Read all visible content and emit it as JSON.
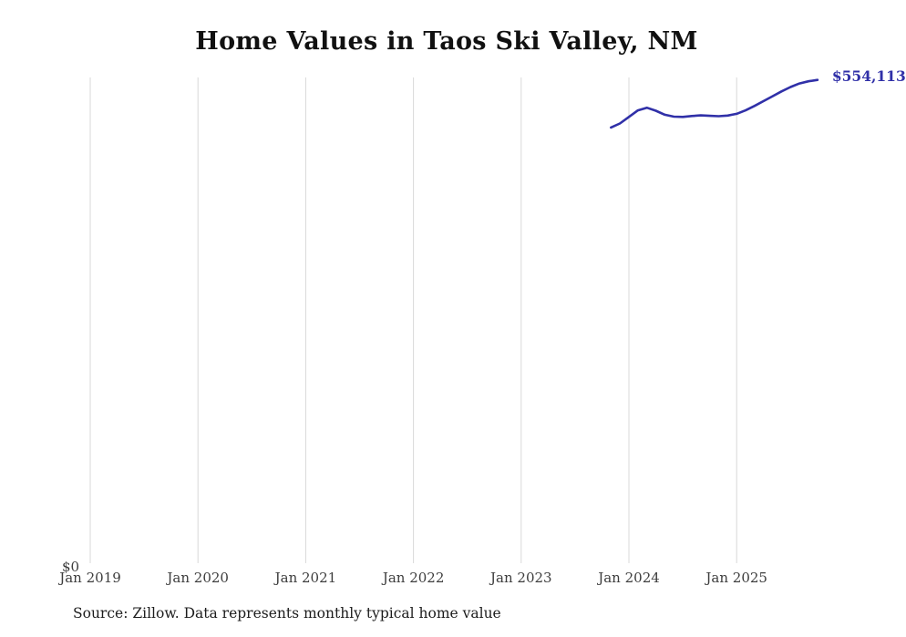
{
  "page": {
    "source_note": "Source: Zillow. Data represents monthly typical home value"
  },
  "chart_data": {
    "type": "line",
    "title": "Home Values in Taos Ski Valley, NM",
    "series_name": "Monthly typical home value",
    "x_tick_labels": [
      "Jan 2019",
      "Jan 2020",
      "Jan 2021",
      "Jan 2022",
      "Jan 2023",
      "Jan 2024",
      "Jan 2025"
    ],
    "y_tick_labels": [
      "$0"
    ],
    "ylim": [
      0,
      560000
    ],
    "grid": "vertical-only",
    "legend": "none",
    "line_color": "#3030a8",
    "grid_color": "#d8d8d8",
    "end_label": "$554,113",
    "categories": [
      "Nov 2023",
      "Dec 2023",
      "Jan 2024",
      "Feb 2024",
      "Mar 2024",
      "Apr 2024",
      "May 2024",
      "Jun 2024",
      "Jul 2024",
      "Aug 2024",
      "Sep 2024",
      "Oct 2024",
      "Nov 2024",
      "Dec 2024",
      "Jan 2025",
      "Feb 2025",
      "Mar 2025",
      "Apr 2025",
      "May 2025",
      "Jun 2025",
      "Jul 2025",
      "Aug 2025",
      "Sep 2025",
      "Oct 2025"
    ],
    "values": [
      500000,
      504500,
      512000,
      519500,
      522500,
      519000,
      514500,
      512300,
      512000,
      513000,
      513800,
      513200,
      512800,
      513500,
      515500,
      519500,
      524500,
      530000,
      535500,
      541000,
      546000,
      550000,
      552500,
      554113
    ]
  }
}
